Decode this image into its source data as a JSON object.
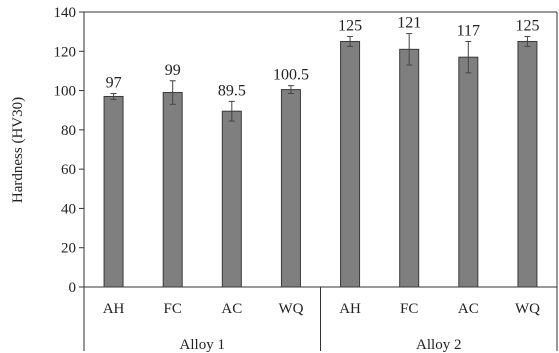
{
  "chart_data": {
    "type": "bar",
    "title": "",
    "xlabel": "",
    "ylabel": "Hardness (HV30)",
    "ylim": [
      0,
      140
    ],
    "yticks": [
      0,
      20,
      40,
      60,
      80,
      100,
      120,
      140
    ],
    "grid": false,
    "legend": "none",
    "groups": [
      {
        "name": "Alloy 1",
        "categories": [
          "AH",
          "FC",
          "AC",
          "WQ"
        ]
      },
      {
        "name": "Alloy 2",
        "categories": [
          "AH",
          "FC",
          "AC",
          "WQ"
        ]
      }
    ],
    "series": [
      {
        "values": [
          97,
          99,
          89.5,
          100.5,
          125,
          121,
          117,
          125
        ],
        "labels": [
          "97",
          "99",
          "89.5",
          "100.5",
          "125",
          "121",
          "117",
          "125"
        ],
        "errors": [
          1.5,
          6,
          5,
          2,
          2.5,
          8,
          8,
          2.5
        ]
      }
    ],
    "colors": {
      "bar": "#7f7f7f",
      "bar_edge": "#3a3a3a",
      "axis": "#333333",
      "error": "#444444"
    }
  }
}
